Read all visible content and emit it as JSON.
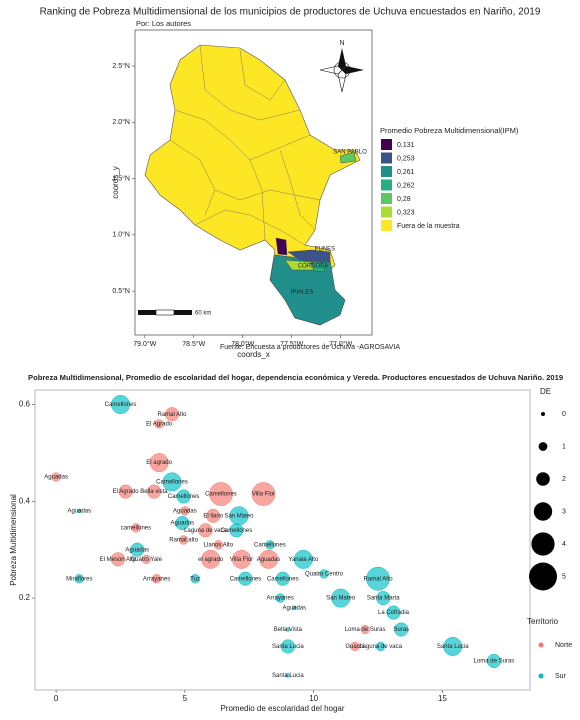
{
  "chart_data": [
    {
      "type": "map",
      "title": "Ranking de Pobreza Multidimensional de los municipios de productores de Uchuva encuestados en Nariño, 2019",
      "subtitle": "Por: Los autores",
      "xlabel": "coords_x",
      "ylabel": "coords_y",
      "xlim": [
        -79.1,
        -76.68
      ],
      "ylim": [
        0.11,
        2.82
      ],
      "xticks": [
        {
          "value": -79.0,
          "label": "79.0°W"
        },
        {
          "value": -78.5,
          "label": "78.5°W"
        },
        {
          "value": -78.0,
          "label": "78.0°W"
        },
        {
          "value": -77.5,
          "label": "77.5°W"
        },
        {
          "value": -77.0,
          "label": "77.0°W"
        }
      ],
      "yticks": [
        {
          "value": 0.5,
          "label": "0.5°N"
        },
        {
          "value": 1.0,
          "label": "1.0°N"
        },
        {
          "value": 1.5,
          "label": "1.5°N"
        },
        {
          "value": 2.0,
          "label": "2.0°N"
        },
        {
          "value": 2.5,
          "label": "2.5°N"
        }
      ],
      "legend_title": "Promedio Pobreza Multidimensional(IPM)",
      "legend": [
        {
          "value": 0.131,
          "label": "0,131",
          "color": "#440154"
        },
        {
          "value": 0.253,
          "label": "0,253",
          "color": "#3b528b"
        },
        {
          "value": 0.261,
          "label": "0,261",
          "color": "#21908c"
        },
        {
          "value": 0.262,
          "label": "0,262",
          "color": "#27ad81"
        },
        {
          "value": 0.28,
          "label": "0,28",
          "color": "#5dc863"
        },
        {
          "value": 0.323,
          "label": "0,323",
          "color": "#aadc32"
        }
      ],
      "outside_label": "Fuera de la muestra",
      "outside_color": "#fde725",
      "region_labels": [
        "SAN PABLO",
        "FUNES",
        "CÓRDOBA",
        "IPIALES"
      ],
      "scale_label": "60 km",
      "north_label": "N",
      "caption": "Fuente: Encuesta a productores de Uchuva -AGROSAVIA"
    },
    {
      "type": "bubble",
      "title": "Pobreza Multidimensional, Promedio de escolaridad del hogar, dependencia económica y Vereda. Productores encuestados de Uchuva Nariño. 2019",
      "xlabel": "Promedio de escolaridad del hogar",
      "ylabel": "Pobreza Multidimensional",
      "xlim": [
        -0.82,
        18.4
      ],
      "ylim": [
        0.01,
        0.63
      ],
      "xticks": [
        0,
        5,
        10,
        15
      ],
      "yticks": [
        0.2,
        0.4,
        0.6
      ],
      "size_title": "DE",
      "size_legend": [
        0,
        1,
        2,
        3,
        4,
        5
      ],
      "color_title": "Territorio",
      "series": [
        {
          "name": "Norte",
          "color": "#f8766d",
          "labels": [
            "Ramal Alto",
            "El Agrado",
            "Aguadas",
            "El agrado",
            "El Agrado",
            "Bella vista",
            "Camellones",
            "Villa Flor",
            "Aguadas",
            "camellones",
            "El llano",
            "Laguna de vaca",
            "Ramal alto",
            "Llanos Alto",
            "El Meson Alto",
            "Quatro Yale",
            "el agrado",
            "Villa Flor",
            "Aguadas",
            "Arrayanes",
            "Loma de Suras",
            "Guachi"
          ],
          "x": [
            4.5,
            4.0,
            0.0,
            4.0,
            2.7,
            3.8,
            6.4,
            8.05,
            5.0,
            3.1,
            6.1,
            5.8,
            4.95,
            6.3,
            2.4,
            3.5,
            6.0,
            7.2,
            8.25,
            3.9,
            12.0,
            11.6
          ],
          "values": [
            0.58,
            0.56,
            0.45,
            0.48,
            0.42,
            0.42,
            0.415,
            0.415,
            0.38,
            0.345,
            0.37,
            0.34,
            0.32,
            0.31,
            0.28,
            0.28,
            0.28,
            0.28,
            0.28,
            0.24,
            0.135,
            0.1
          ],
          "sizes": [
            2,
            1,
            1,
            3,
            2,
            2,
            4,
            4,
            1,
            1,
            2,
            2,
            1,
            1,
            2,
            1,
            3,
            3,
            3,
            1,
            1,
            1
          ]
        },
        {
          "name": "Sur",
          "color": "#00bfc4",
          "labels": [
            "Camellones",
            "Camellones",
            "Camellones",
            "Aguadas",
            "San Mateo",
            "Aguadas",
            "Camellones",
            "Camellones",
            "Aguadas",
            "Yanala Alto",
            "Quatro Centro",
            "Miraflores",
            "Tuz",
            "Camellones",
            "Camellones",
            "Ramal Alto",
            "Arrayanes",
            "San Mateo",
            "Santa Marta",
            "Aguadas",
            "La Cofradia",
            "Bella Vista",
            "Suras",
            "Santa Lucia",
            "Laguna de vaca",
            "Santa Lucia",
            "Loma de Suras",
            "Santa Lucia"
          ],
          "x": [
            2.5,
            4.5,
            4.95,
            0.9,
            7.1,
            4.9,
            7.0,
            8.3,
            3.15,
            9.6,
            10.4,
            0.9,
            5.4,
            7.35,
            8.8,
            12.5,
            8.7,
            11.05,
            12.7,
            9.25,
            13.1,
            9.0,
            13.4,
            9.0,
            12.6,
            15.4,
            17.0,
            9.0
          ],
          "values": [
            0.6,
            0.44,
            0.41,
            0.38,
            0.37,
            0.355,
            0.34,
            0.31,
            0.3,
            0.28,
            0.25,
            0.24,
            0.24,
            0.24,
            0.24,
            0.24,
            0.2,
            0.2,
            0.2,
            0.18,
            0.17,
            0.135,
            0.135,
            0.1,
            0.1,
            0.1,
            0.07,
            0.04
          ],
          "sizes": [
            3,
            3,
            2,
            0,
            3,
            2,
            2,
            1,
            2,
            3,
            1,
            1,
            1,
            2,
            2,
            4,
            1,
            3,
            2,
            0,
            2,
            0,
            2,
            2,
            1,
            3,
            2,
            0
          ]
        }
      ]
    }
  ]
}
